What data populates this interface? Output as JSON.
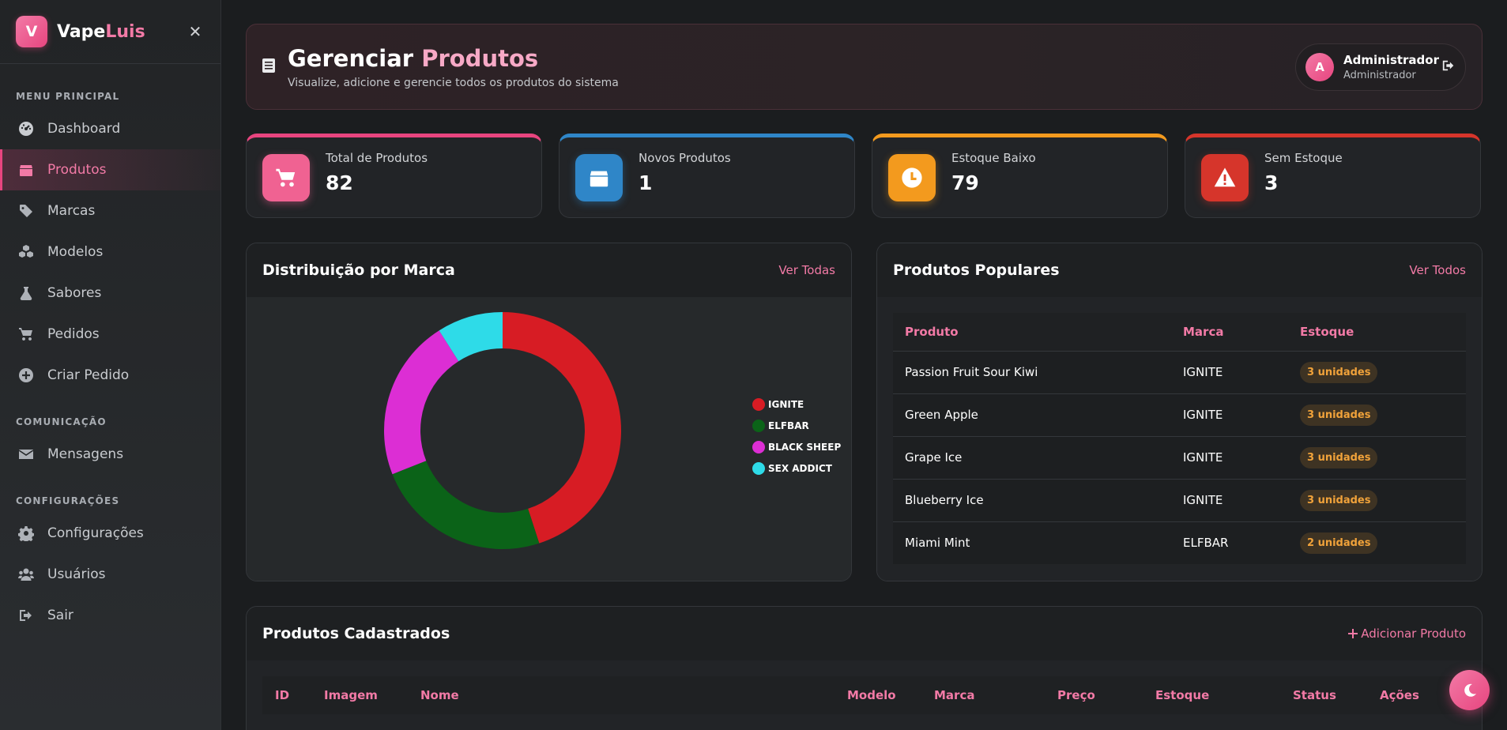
{
  "brand": {
    "logo_letter": "V",
    "name_part1": "Vape",
    "name_part2": "Luis",
    "close_glyph": "✕"
  },
  "sidebar": {
    "sections": [
      {
        "title": "MENU PRINCIPAL",
        "items": [
          {
            "label": "Dashboard",
            "icon": "gauge-icon",
            "active": false
          },
          {
            "label": "Produtos",
            "icon": "box-icon",
            "active": true
          },
          {
            "label": "Marcas",
            "icon": "tag-icon",
            "active": false
          },
          {
            "label": "Modelos",
            "icon": "cubes-icon",
            "active": false
          },
          {
            "label": "Sabores",
            "icon": "flask-icon",
            "active": false
          },
          {
            "label": "Pedidos",
            "icon": "cart-icon",
            "active": false
          },
          {
            "label": "Criar Pedido",
            "icon": "plus-circle-icon",
            "active": false
          }
        ]
      },
      {
        "title": "COMUNICAÇÃO",
        "items": [
          {
            "label": "Mensagens",
            "icon": "envelope-icon",
            "active": false
          }
        ]
      },
      {
        "title": "CONFIGURAÇÕES",
        "items": [
          {
            "label": "Configurações",
            "icon": "gear-icon",
            "active": false
          },
          {
            "label": "Usuários",
            "icon": "users-icon",
            "active": false
          },
          {
            "label": "Sair",
            "icon": "sign-out-icon",
            "active": false
          }
        ]
      }
    ]
  },
  "header": {
    "title_part1": "Gerenciar",
    "title_part2": "Produtos",
    "subtitle": "Visualize, adicione e gerencie todos os produtos do sistema",
    "user": {
      "initial": "A",
      "name": "Administrador",
      "role": "Administrador"
    }
  },
  "stats": [
    {
      "label": "Total de Produtos",
      "value": "82",
      "icon": "cart-icon",
      "color": "#e8457f",
      "icon_bg": "#f06292"
    },
    {
      "label": "Novos Produtos",
      "value": "1",
      "icon": "box-icon",
      "color": "#2f86c8",
      "icon_bg": "#2f86c8"
    },
    {
      "label": "Estoque Baixo",
      "value": "79",
      "icon": "clock-icon",
      "color": "#f39a1e",
      "icon_bg": "#f39a1e"
    },
    {
      "label": "Sem Estoque",
      "value": "3",
      "icon": "warning-icon",
      "color": "#d6352b",
      "icon_bg": "#d6352b"
    }
  ],
  "chart_panel": {
    "title": "Distribuição por Marca",
    "link": "Ver Todas"
  },
  "chart_data": {
    "type": "pie",
    "title": "Distribuição por Marca",
    "categories": [
      "IGNITE",
      "ELFBAR",
      "BLACK SHEEP",
      "SEX ADDICT"
    ],
    "values": [
      45,
      24,
      22,
      9
    ],
    "colors": [
      "#d71c24",
      "#0b6318",
      "#dc2ed4",
      "#2edbe8"
    ],
    "donut": true,
    "legend": "right"
  },
  "popular": {
    "title": "Produtos Populares",
    "link": "Ver Todos",
    "columns": [
      "Produto",
      "Marca",
      "Estoque"
    ],
    "rows": [
      {
        "produto": "Passion Fruit Sour Kiwi",
        "marca": "IGNITE",
        "estoque": "3 unidades"
      },
      {
        "produto": "Green Apple",
        "marca": "IGNITE",
        "estoque": "3 unidades"
      },
      {
        "produto": "Grape Ice",
        "marca": "IGNITE",
        "estoque": "3 unidades"
      },
      {
        "produto": "Blueberry Ice",
        "marca": "IGNITE",
        "estoque": "3 unidades"
      },
      {
        "produto": "Miami Mint",
        "marca": "ELFBAR",
        "estoque": "2 unidades"
      }
    ]
  },
  "products": {
    "title": "Produtos Cadastrados",
    "add_label": "Adicionar Produto",
    "columns": [
      "ID",
      "Imagem",
      "Nome",
      "Modelo",
      "Marca",
      "Preço",
      "Estoque",
      "Status",
      "Ações"
    ]
  }
}
